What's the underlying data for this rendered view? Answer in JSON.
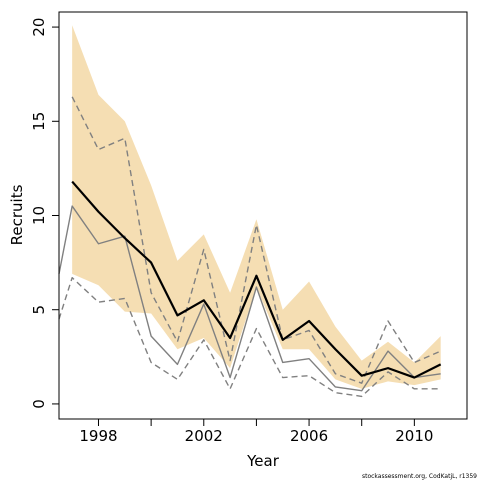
{
  "chart_data": {
    "type": "line",
    "title": "",
    "xlabel": "Year",
    "ylabel": "Recruits",
    "xlim": [
      1996.5,
      2012
    ],
    "ylim": [
      -0.8,
      20.8
    ],
    "xticks": [
      1998,
      2002,
      2006,
      2010
    ],
    "yticks": [
      0,
      5,
      10,
      15,
      20
    ],
    "x": [
      1997,
      1998,
      1999,
      2000,
      2001,
      2002,
      2003,
      2004,
      2005,
      2006,
      2007,
      2008,
      2009,
      2010,
      2011
    ],
    "band": {
      "color": "#F5DEB3",
      "upper": [
        20.1,
        16.4,
        15.0,
        11.6,
        7.6,
        9.0,
        5.9,
        9.8,
        5.0,
        6.5,
        4.1,
        2.3,
        3.3,
        2.2,
        3.6
      ],
      "lower": [
        6.9,
        6.3,
        4.9,
        4.8,
        2.9,
        3.5,
        1.9,
        6.2,
        2.9,
        2.9,
        1.3,
        0.8,
        1.2,
        1.0,
        1.3
      ]
    },
    "series": [
      {
        "role": "estimate",
        "color": "#000000",
        "style": "solid",
        "values": [
          11.8,
          10.2,
          8.8,
          7.5,
          4.7,
          5.5,
          3.5,
          6.8,
          3.4,
          4.4,
          2.9,
          1.5,
          1.9,
          1.4,
          2.1
        ]
      },
      {
        "role": "previous",
        "color": "#808080",
        "style": "solid",
        "values": [
          10.5,
          8.5,
          8.9,
          3.6,
          2.1,
          5.3,
          1.4,
          6.2,
          2.2,
          2.4,
          0.9,
          0.7,
          2.8,
          1.4,
          1.6
        ]
      },
      {
        "role": "previous-upper",
        "color": "#808080",
        "style": "dashed",
        "values": [
          16.3,
          13.5,
          14.1,
          5.9,
          3.3,
          8.2,
          2.3,
          9.5,
          3.4,
          3.9,
          1.6,
          1.1,
          4.4,
          2.2,
          2.8
        ]
      },
      {
        "role": "previous-lower",
        "color": "#808080",
        "style": "dashed",
        "values": [
          6.7,
          5.4,
          5.6,
          2.2,
          1.3,
          3.4,
          0.8,
          4.0,
          1.4,
          1.5,
          0.6,
          0.4,
          1.7,
          0.8,
          0.8
        ]
      }
    ],
    "left_stub": {
      "x": 1996.5,
      "previous": 6.9,
      "previous-lower": 4.5
    },
    "grid": false,
    "legend": "none",
    "footnote": "stockassessment.org, CodKatjL, r1359"
  }
}
